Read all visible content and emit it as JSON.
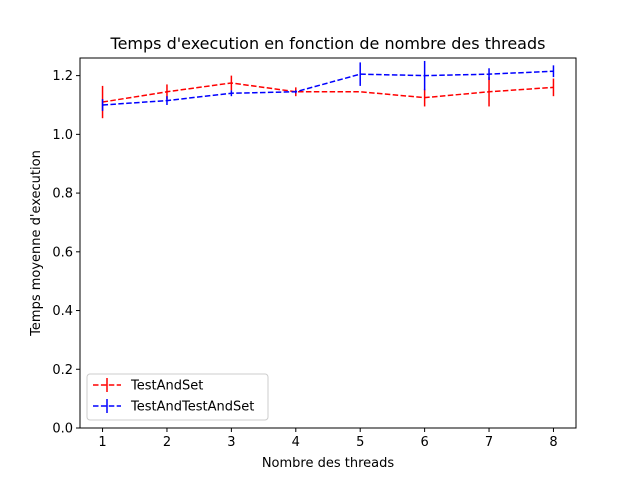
{
  "chart_data": {
    "type": "line",
    "title": "Temps d'execution en fonction de nombre des threads",
    "xlabel": "Nombre des threads",
    "ylabel": "Temps moyenne d'execution",
    "x": [
      1,
      2,
      3,
      4,
      5,
      6,
      7,
      8
    ],
    "xlim": [
      0.65,
      8.35
    ],
    "ylim": [
      0.0,
      1.26
    ],
    "xticks": [
      "1",
      "2",
      "3",
      "4",
      "5",
      "6",
      "7",
      "8"
    ],
    "yticks": [
      "0.0",
      "0.2",
      "0.4",
      "0.6",
      "0.8",
      "1.0",
      "1.2"
    ],
    "grid": false,
    "legend_position": "lower-left",
    "series": [
      {
        "name": "TestAndSet",
        "color": "#ff0000",
        "linestyle": "dashed",
        "values": [
          1.11,
          1.145,
          1.175,
          1.145,
          1.145,
          1.125,
          1.145,
          1.16
        ],
        "errors": [
          0.055,
          0.025,
          0.025,
          0.015,
          0.0,
          0.03,
          0.05,
          0.03
        ]
      },
      {
        "name": "TestAndTestAndSet",
        "color": "#0000ff",
        "linestyle": "dashed",
        "values": [
          1.1,
          1.115,
          1.14,
          1.145,
          1.205,
          1.2,
          1.205,
          1.215
        ],
        "errors": [
          0.02,
          0.015,
          0.01,
          0.005,
          0.04,
          0.05,
          0.02,
          0.02
        ]
      }
    ]
  }
}
